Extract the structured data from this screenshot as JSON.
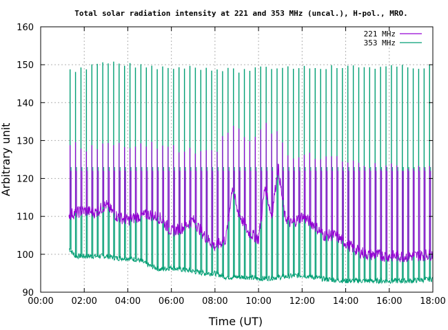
{
  "chart_data": {
    "type": "line",
    "title": "Total solar radiation intensity at 221 and 353 MHz (uncal.), H-pol., MRO.",
    "xlabel": "Time (UT)",
    "ylabel": "Arbitrary unit",
    "xlim": [
      0,
      18
    ],
    "ylim": [
      90,
      160
    ],
    "x_ticks": [
      {
        "value": 0,
        "label": "00:00"
      },
      {
        "value": 2,
        "label": "02:00"
      },
      {
        "value": 4,
        "label": "04:00"
      },
      {
        "value": 6,
        "label": "06:00"
      },
      {
        "value": 8,
        "label": "08:00"
      },
      {
        "value": 10,
        "label": "10:00"
      },
      {
        "value": 12,
        "label": "12:00"
      },
      {
        "value": 14,
        "label": "14:00"
      },
      {
        "value": 16,
        "label": "16:00"
      },
      {
        "value": 18,
        "label": "18:00"
      }
    ],
    "y_ticks": [
      90,
      100,
      110,
      120,
      130,
      140,
      150,
      160
    ],
    "grid": true,
    "legend_position": "top-right",
    "series": [
      {
        "name": "221 MHz",
        "color": "#9400d3",
        "baseline": [
          [
            1.3,
            110.5
          ],
          [
            2.0,
            111.5
          ],
          [
            2.5,
            111
          ],
          [
            3.0,
            113
          ],
          [
            3.5,
            110
          ],
          [
            4.0,
            109
          ],
          [
            4.5,
            110
          ],
          [
            5.0,
            110.5
          ],
          [
            5.5,
            109.5
          ],
          [
            6.0,
            106
          ],
          [
            6.5,
            107
          ],
          [
            7.0,
            109
          ],
          [
            7.5,
            105
          ],
          [
            8.0,
            102
          ],
          [
            8.5,
            104
          ],
          [
            8.8,
            118
          ],
          [
            9.0,
            112
          ],
          [
            9.5,
            106
          ],
          [
            10.0,
            104
          ],
          [
            10.3,
            118
          ],
          [
            10.6,
            110
          ],
          [
            10.9,
            123
          ],
          [
            11.2,
            110
          ],
          [
            11.5,
            108
          ],
          [
            12.0,
            110
          ],
          [
            12.5,
            108
          ],
          [
            13.0,
            105
          ],
          [
            13.5,
            105
          ],
          [
            14.0,
            103
          ],
          [
            14.5,
            101
          ],
          [
            15.0,
            100
          ],
          [
            16.0,
            99.5
          ],
          [
            17.0,
            99.5
          ],
          [
            18.0,
            100
          ]
        ],
        "pulse_peaks": [
          [
            1.4,
            130
          ],
          [
            2.0,
            129
          ],
          [
            3.0,
            130
          ],
          [
            4.0,
            129
          ],
          [
            5.0,
            130
          ],
          [
            6.0,
            129
          ],
          [
            7.0,
            128
          ],
          [
            8.0,
            128
          ],
          [
            8.8,
            136
          ],
          [
            9.5,
            130
          ],
          [
            10.3,
            135
          ],
          [
            10.8,
            133
          ],
          [
            11.5,
            126
          ],
          [
            12.5,
            127
          ],
          [
            13.5,
            126
          ],
          [
            14.5,
            125
          ],
          [
            15.5,
            124
          ],
          [
            16.5,
            124
          ],
          [
            17.5,
            124
          ]
        ],
        "pulse_floor": 122
      },
      {
        "name": "353 MHz",
        "color": "#009e73",
        "baseline": [
          [
            1.3,
            101.5
          ],
          [
            1.6,
            99.5
          ],
          [
            2.0,
            99.5
          ],
          [
            3.0,
            99.5
          ],
          [
            3.5,
            99
          ],
          [
            4.0,
            99
          ],
          [
            4.5,
            98.5
          ],
          [
            5.0,
            97
          ],
          [
            5.5,
            96
          ],
          [
            6.0,
            96.5
          ],
          [
            7.0,
            95.5
          ],
          [
            7.5,
            95
          ],
          [
            8.0,
            95
          ],
          [
            8.5,
            94
          ],
          [
            9.0,
            94
          ],
          [
            9.5,
            94
          ],
          [
            10.0,
            93.5
          ],
          [
            11.0,
            94
          ],
          [
            12.0,
            94.5
          ],
          [
            12.5,
            94
          ],
          [
            13.0,
            93.5
          ],
          [
            14.0,
            93
          ],
          [
            15.0,
            93
          ],
          [
            16.0,
            93
          ],
          [
            17.0,
            93
          ],
          [
            18.0,
            93.5
          ]
        ],
        "pulse_peaks": [
          [
            1.4,
            149
          ],
          [
            3.0,
            151
          ],
          [
            5.0,
            150
          ],
          [
            7.0,
            150
          ],
          [
            9.0,
            149
          ],
          [
            11.0,
            150
          ],
          [
            13.0,
            150
          ],
          [
            15.0,
            150
          ],
          [
            17.0,
            150
          ],
          [
            18.0,
            150
          ]
        ],
        "pulse_floor": 123
      }
    ]
  }
}
